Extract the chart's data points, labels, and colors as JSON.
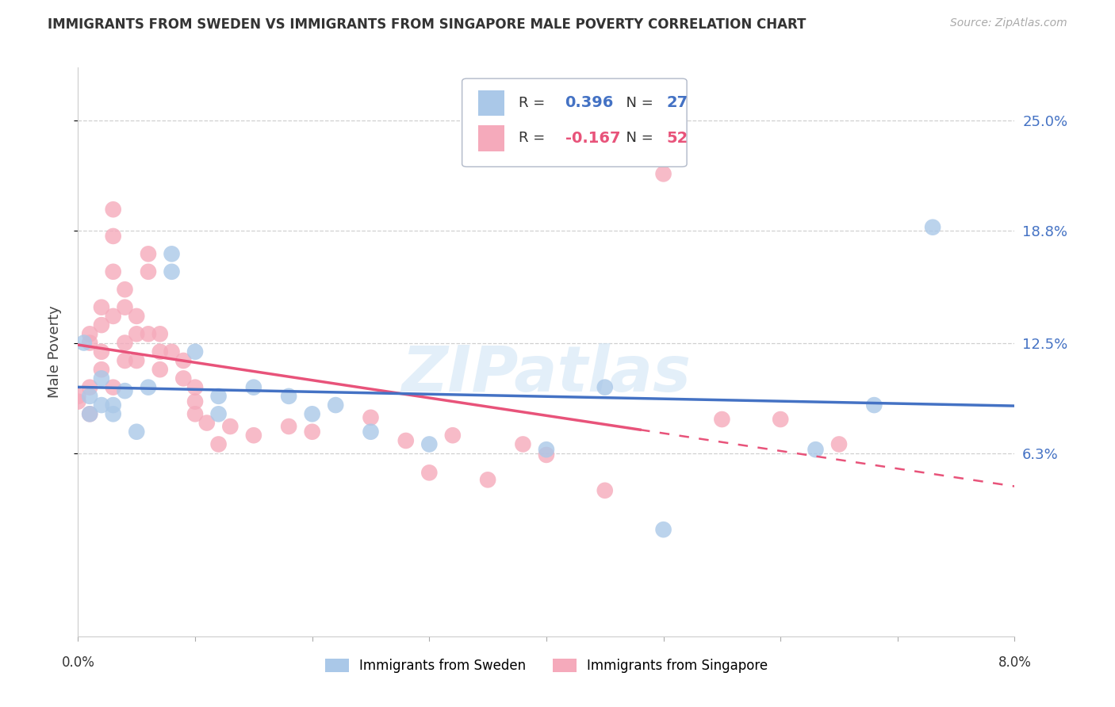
{
  "title": "IMMIGRANTS FROM SWEDEN VS IMMIGRANTS FROM SINGAPORE MALE POVERTY CORRELATION CHART",
  "source": "Source: ZipAtlas.com",
  "ylabel": "Male Poverty",
  "ytick_labels": [
    "25.0%",
    "18.8%",
    "12.5%",
    "6.3%"
  ],
  "ytick_values": [
    0.25,
    0.188,
    0.125,
    0.063
  ],
  "xlim": [
    0.0,
    0.08
  ],
  "ylim": [
    -0.04,
    0.28
  ],
  "sweden_color": "#aac8e8",
  "singapore_color": "#f5aabb",
  "sweden_line_color": "#4472c4",
  "singapore_line_color": "#e8537a",
  "sweden_R": 0.396,
  "sweden_N": 27,
  "singapore_R": -0.167,
  "singapore_N": 52,
  "sweden_x": [
    0.0005,
    0.001,
    0.001,
    0.002,
    0.002,
    0.003,
    0.003,
    0.004,
    0.005,
    0.006,
    0.008,
    0.008,
    0.01,
    0.012,
    0.012,
    0.015,
    0.018,
    0.02,
    0.022,
    0.025,
    0.03,
    0.04,
    0.045,
    0.05,
    0.063,
    0.068,
    0.073
  ],
  "sweden_y": [
    0.125,
    0.095,
    0.085,
    0.105,
    0.09,
    0.09,
    0.085,
    0.098,
    0.075,
    0.1,
    0.175,
    0.165,
    0.12,
    0.095,
    0.085,
    0.1,
    0.095,
    0.085,
    0.09,
    0.075,
    0.068,
    0.065,
    0.1,
    0.02,
    0.065,
    0.09,
    0.19
  ],
  "singapore_x": [
    0.0,
    0.0,
    0.001,
    0.001,
    0.001,
    0.001,
    0.002,
    0.002,
    0.002,
    0.002,
    0.003,
    0.003,
    0.003,
    0.003,
    0.003,
    0.004,
    0.004,
    0.004,
    0.004,
    0.005,
    0.005,
    0.005,
    0.006,
    0.006,
    0.006,
    0.007,
    0.007,
    0.007,
    0.008,
    0.009,
    0.009,
    0.01,
    0.01,
    0.01,
    0.011,
    0.012,
    0.013,
    0.015,
    0.018,
    0.02,
    0.025,
    0.028,
    0.03,
    0.032,
    0.035,
    0.038,
    0.04,
    0.045,
    0.05,
    0.055,
    0.06,
    0.065
  ],
  "singapore_y": [
    0.095,
    0.092,
    0.13,
    0.125,
    0.1,
    0.085,
    0.145,
    0.135,
    0.12,
    0.11,
    0.2,
    0.185,
    0.165,
    0.14,
    0.1,
    0.155,
    0.145,
    0.125,
    0.115,
    0.14,
    0.13,
    0.115,
    0.175,
    0.165,
    0.13,
    0.13,
    0.12,
    0.11,
    0.12,
    0.115,
    0.105,
    0.1,
    0.092,
    0.085,
    0.08,
    0.068,
    0.078,
    0.073,
    0.078,
    0.075,
    0.083,
    0.07,
    0.052,
    0.073,
    0.048,
    0.068,
    0.062,
    0.042,
    0.22,
    0.082,
    0.082,
    0.068
  ],
  "watermark": "ZIPatlas",
  "background_color": "#ffffff",
  "grid_color": "#d0d0d0",
  "legend_label_sweden": "Immigrants from Sweden",
  "legend_label_singapore": "Immigrants from Singapore"
}
